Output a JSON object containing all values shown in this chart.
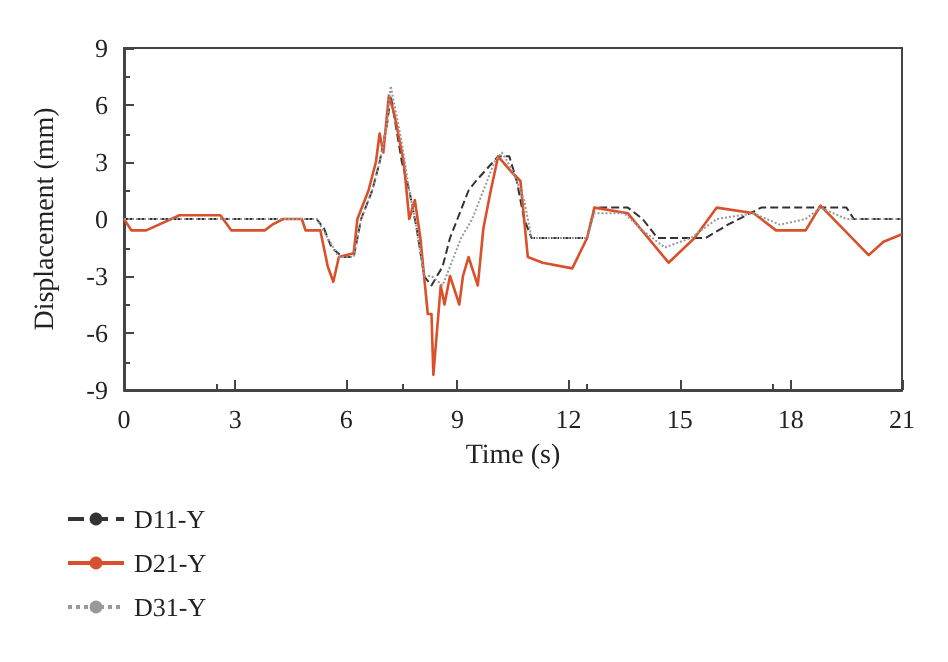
{
  "chart_data": {
    "type": "line",
    "xlabel": "Time (s)",
    "ylabel": "Displacement (mm)",
    "xlim": [
      0,
      21
    ],
    "xticks": [
      0,
      3,
      6,
      9,
      12,
      15,
      18,
      21
    ],
    "ylim": [
      -9,
      9
    ],
    "yticks": [
      -9,
      -6,
      -3,
      0,
      3,
      6,
      9
    ],
    "grid": false,
    "legend": "bottom left",
    "marker": "none",
    "series": [
      {
        "name": "D11-Y",
        "color": "#333333",
        "line_style": "dashed",
        "x": [
          0,
          5.2,
          5.4,
          5.6,
          5.9,
          6.2,
          6.4,
          6.7,
          6.9,
          7.1,
          7.2,
          7.5,
          7.7,
          7.9,
          8.1,
          8.3,
          8.6,
          8.8,
          9.0,
          9.3,
          9.5,
          10.1,
          10.4,
          10.6,
          10.8,
          11.0,
          12.5,
          12.7,
          13.6,
          14.0,
          14.4,
          15.7,
          16.3,
          17.2,
          19.5,
          19.7,
          21
        ],
        "values": [
          0,
          0,
          -0.5,
          -1.5,
          -2,
          -2,
          0,
          1.5,
          3,
          5,
          6.5,
          3,
          1.5,
          -0.5,
          -3,
          -3.5,
          -2.5,
          -1,
          0,
          1.5,
          2,
          3.3,
          3.3,
          2,
          0,
          -1,
          -1,
          0.6,
          0.6,
          0,
          -1,
          -1,
          -0.3,
          0.6,
          0.6,
          0,
          0
        ]
      },
      {
        "name": "D21-Y",
        "color": "#d9502b",
        "line_style": "solid",
        "x": [
          0,
          0.2,
          0.6,
          1.5,
          2.6,
          2.9,
          3.8,
          4.0,
          4.3,
          4.8,
          4.9,
          5.3,
          5.5,
          5.65,
          5.8,
          6.2,
          6.3,
          6.6,
          6.8,
          6.9,
          7.0,
          7.15,
          7.3,
          7.55,
          7.7,
          7.85,
          8.0,
          8.2,
          8.3,
          8.35,
          8.55,
          8.65,
          8.8,
          9.05,
          9.15,
          9.3,
          9.55,
          9.7,
          9.9,
          10.1,
          10.45,
          10.7,
          10.9,
          11.3,
          12.1,
          12.5,
          12.7,
          13.6,
          14.7,
          15.4,
          16.0,
          17.0,
          17.6,
          18.4,
          18.8,
          20.1,
          20.5,
          21
        ],
        "values": [
          0,
          -0.6,
          -0.6,
          0.2,
          0.2,
          -0.6,
          -0.6,
          -0.3,
          0,
          0,
          -0.6,
          -0.6,
          -2.5,
          -3.3,
          -2,
          -1.8,
          0,
          1.5,
          3,
          4.5,
          3.5,
          6.5,
          5.5,
          3,
          0,
          1,
          -1,
          -5,
          -5,
          -8.2,
          -3.5,
          -4.5,
          -3,
          -4.5,
          -3,
          -2,
          -3.5,
          -0.5,
          1.5,
          3.3,
          2.5,
          2,
          -2,
          -2.3,
          -2.6,
          -1,
          0.6,
          0.3,
          -2.3,
          -1,
          0.6,
          0.3,
          -0.6,
          -0.6,
          0.7,
          -1.9,
          -1.2,
          -0.8
        ]
      },
      {
        "name": "D31-Y",
        "color": "#999999",
        "line_style": "dotted",
        "x": [
          0,
          5.2,
          5.5,
          5.8,
          6.2,
          6.4,
          6.7,
          6.9,
          7.1,
          7.2,
          7.5,
          7.7,
          7.9,
          8.1,
          8.3,
          8.6,
          8.8,
          9.1,
          9.4,
          9.7,
          10.0,
          10.2,
          10.5,
          10.8,
          11.0,
          12.5,
          12.7,
          13.5,
          14.0,
          14.6,
          15.3,
          16.0,
          17.0,
          17.7,
          18.4,
          18.8,
          19.5,
          21
        ],
        "values": [
          0,
          0,
          -1,
          -2,
          -2,
          0,
          1.5,
          3,
          5,
          7,
          4,
          1.5,
          -0.5,
          -3,
          -3,
          -3.5,
          -2.5,
          -1,
          0,
          1.5,
          3,
          3.5,
          2.5,
          1,
          -1,
          -1,
          0.3,
          0.3,
          -0.6,
          -1.5,
          -1,
          0,
          0.3,
          -0.3,
          0,
          0.6,
          0,
          0
        ]
      }
    ]
  }
}
